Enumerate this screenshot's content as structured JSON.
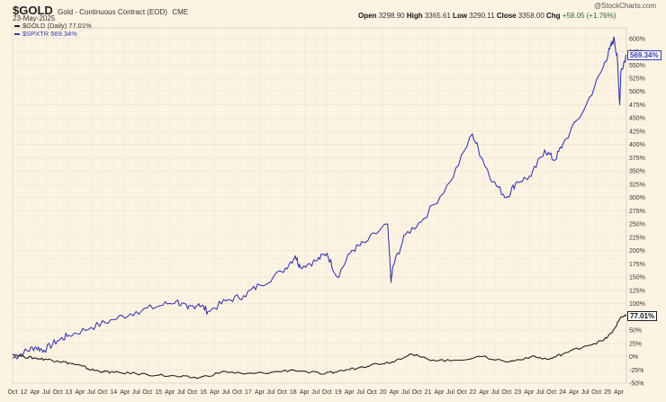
{
  "header": {
    "symbol": "$GOLD",
    "description": "Gold - Continuous Contract (EOD)",
    "exchange": "CME",
    "date": "23-May-2025",
    "credit": "@StockCharts.com",
    "open_label": "Open",
    "open_value": "3298.90",
    "high_label": "High",
    "high_value": "3365.61",
    "low_label": "Low",
    "low_value": "3290.11",
    "close_label": "Close",
    "close_value": "3358.00",
    "chg_label": "Chg",
    "chg_value": "+58.05 (+1.76%)"
  },
  "legend": [
    {
      "label": "$GOLD (Daily) 77.01%",
      "color": "#222222"
    },
    {
      "label": "$SPXTR 569.34%",
      "color": "#3a3ab0"
    }
  ],
  "badges": {
    "spx": "569.34%",
    "gold": "77.01%"
  },
  "chart_data": {
    "type": "line",
    "ylim": [
      -50,
      620
    ],
    "y_ticks": [
      -50,
      -25,
      0,
      25,
      50,
      75,
      100,
      125,
      150,
      175,
      200,
      225,
      250,
      275,
      300,
      325,
      350,
      375,
      400,
      425,
      450,
      475,
      500,
      525,
      550,
      575,
      600
    ],
    "y_tick_suffix": "%",
    "x_range": [
      2011.75,
      2025.42
    ],
    "x_ticks": [
      {
        "t": 2011.75,
        "label": "Oct"
      },
      {
        "t": 2012.0,
        "label": "12"
      },
      {
        "t": 2012.25,
        "label": "Apr"
      },
      {
        "t": 2012.5,
        "label": "Jul"
      },
      {
        "t": 2012.75,
        "label": "Oct"
      },
      {
        "t": 2013.0,
        "label": "13"
      },
      {
        "t": 2013.25,
        "label": "Apr"
      },
      {
        "t": 2013.5,
        "label": "Jul"
      },
      {
        "t": 2013.75,
        "label": "Oct"
      },
      {
        "t": 2014.0,
        "label": "14"
      },
      {
        "t": 2014.25,
        "label": "Apr"
      },
      {
        "t": 2014.5,
        "label": "Jul"
      },
      {
        "t": 2014.75,
        "label": "Oct"
      },
      {
        "t": 2015.0,
        "label": "15"
      },
      {
        "t": 2015.25,
        "label": "Apr"
      },
      {
        "t": 2015.5,
        "label": "Jul"
      },
      {
        "t": 2015.75,
        "label": "Oct"
      },
      {
        "t": 2016.0,
        "label": "16"
      },
      {
        "t": 2016.25,
        "label": "Apr"
      },
      {
        "t": 2016.5,
        "label": "Jul"
      },
      {
        "t": 2016.75,
        "label": "Oct"
      },
      {
        "t": 2017.0,
        "label": "17"
      },
      {
        "t": 2017.25,
        "label": "Apr"
      },
      {
        "t": 2017.5,
        "label": "Jul"
      },
      {
        "t": 2017.75,
        "label": "Oct"
      },
      {
        "t": 2018.0,
        "label": "18"
      },
      {
        "t": 2018.25,
        "label": "Apr"
      },
      {
        "t": 2018.5,
        "label": "Jul"
      },
      {
        "t": 2018.75,
        "label": "Oct"
      },
      {
        "t": 2019.0,
        "label": "19"
      },
      {
        "t": 2019.25,
        "label": "Apr"
      },
      {
        "t": 2019.5,
        "label": "Jul"
      },
      {
        "t": 2019.75,
        "label": "Oct"
      },
      {
        "t": 2020.0,
        "label": "20"
      },
      {
        "t": 2020.25,
        "label": "Apr"
      },
      {
        "t": 2020.5,
        "label": "Jul"
      },
      {
        "t": 2020.75,
        "label": "Oct"
      },
      {
        "t": 2021.0,
        "label": "21"
      },
      {
        "t": 2021.25,
        "label": "Apr"
      },
      {
        "t": 2021.5,
        "label": "Jul"
      },
      {
        "t": 2021.75,
        "label": "Oct"
      },
      {
        "t": 2022.0,
        "label": "22"
      },
      {
        "t": 2022.25,
        "label": "Apr"
      },
      {
        "t": 2022.5,
        "label": "Jul"
      },
      {
        "t": 2022.75,
        "label": "Oct"
      },
      {
        "t": 2023.0,
        "label": "23"
      },
      {
        "t": 2023.25,
        "label": "Apr"
      },
      {
        "t": 2023.5,
        "label": "Jul"
      },
      {
        "t": 2023.75,
        "label": "Oct"
      },
      {
        "t": 2024.0,
        "label": "24"
      },
      {
        "t": 2024.25,
        "label": "Apr"
      },
      {
        "t": 2024.5,
        "label": "Jul"
      },
      {
        "t": 2024.75,
        "label": "Oct"
      },
      {
        "t": 2025.0,
        "label": "25"
      },
      {
        "t": 2025.25,
        "label": "Apr"
      }
    ],
    "grid": true,
    "legend_position": "top-left",
    "series": [
      {
        "name": "$SPXTR",
        "color": "#3a3ab0",
        "x": [
          2011.75,
          2012.0,
          2012.25,
          2012.45,
          2012.75,
          2013.0,
          2013.5,
          2014.0,
          2014.5,
          2015.0,
          2015.4,
          2015.65,
          2015.9,
          2016.1,
          2016.5,
          2016.9,
          2017.25,
          2017.75,
          2018.05,
          2018.15,
          2018.5,
          2018.75,
          2018.98,
          2019.3,
          2019.6,
          2020.1,
          2020.18,
          2020.22,
          2020.5,
          2020.9,
          2021.5,
          2021.99,
          2022.2,
          2022.45,
          2022.75,
          2022.98,
          2023.3,
          2023.6,
          2023.82,
          2024.0,
          2024.5,
          2024.9,
          2025.05,
          2025.15,
          2025.22,
          2025.27,
          2025.3,
          2025.42
        ],
        "y": [
          -3,
          8,
          18,
          12,
          30,
          40,
          55,
          70,
          85,
          95,
          105,
          90,
          100,
          85,
          105,
          115,
          135,
          160,
          190,
          170,
          180,
          195,
          150,
          200,
          215,
          250,
          140,
          170,
          230,
          260,
          330,
          420,
          375,
          330,
          300,
          330,
          340,
          390,
          370,
          400,
          470,
          545,
          580,
          600,
          560,
          475,
          540,
          569.34
        ]
      },
      {
        "name": "$GOLD",
        "color": "#222222",
        "x": [
          2011.75,
          2012.0,
          2012.25,
          2012.5,
          2012.75,
          2013.0,
          2013.3,
          2013.5,
          2013.75,
          2014.0,
          2014.5,
          2015.0,
          2015.5,
          2015.9,
          2016.5,
          2016.9,
          2017.5,
          2018.0,
          2018.7,
          2019.0,
          2019.5,
          2019.75,
          2020.2,
          2020.6,
          2021.0,
          2021.5,
          2022.2,
          2022.8,
          2023.3,
          2023.7,
          2024.0,
          2024.5,
          2024.9,
          2025.1,
          2025.3,
          2025.42
        ],
        "y": [
          5,
          0,
          -3,
          -5,
          -8,
          -12,
          -18,
          -25,
          -28,
          -30,
          -32,
          -35,
          -38,
          -40,
          -28,
          -33,
          -30,
          -25,
          -33,
          -28,
          -20,
          -15,
          -10,
          5,
          -5,
          -8,
          0,
          -10,
          0,
          -5,
          5,
          20,
          30,
          45,
          75,
          77.01
        ]
      }
    ]
  }
}
